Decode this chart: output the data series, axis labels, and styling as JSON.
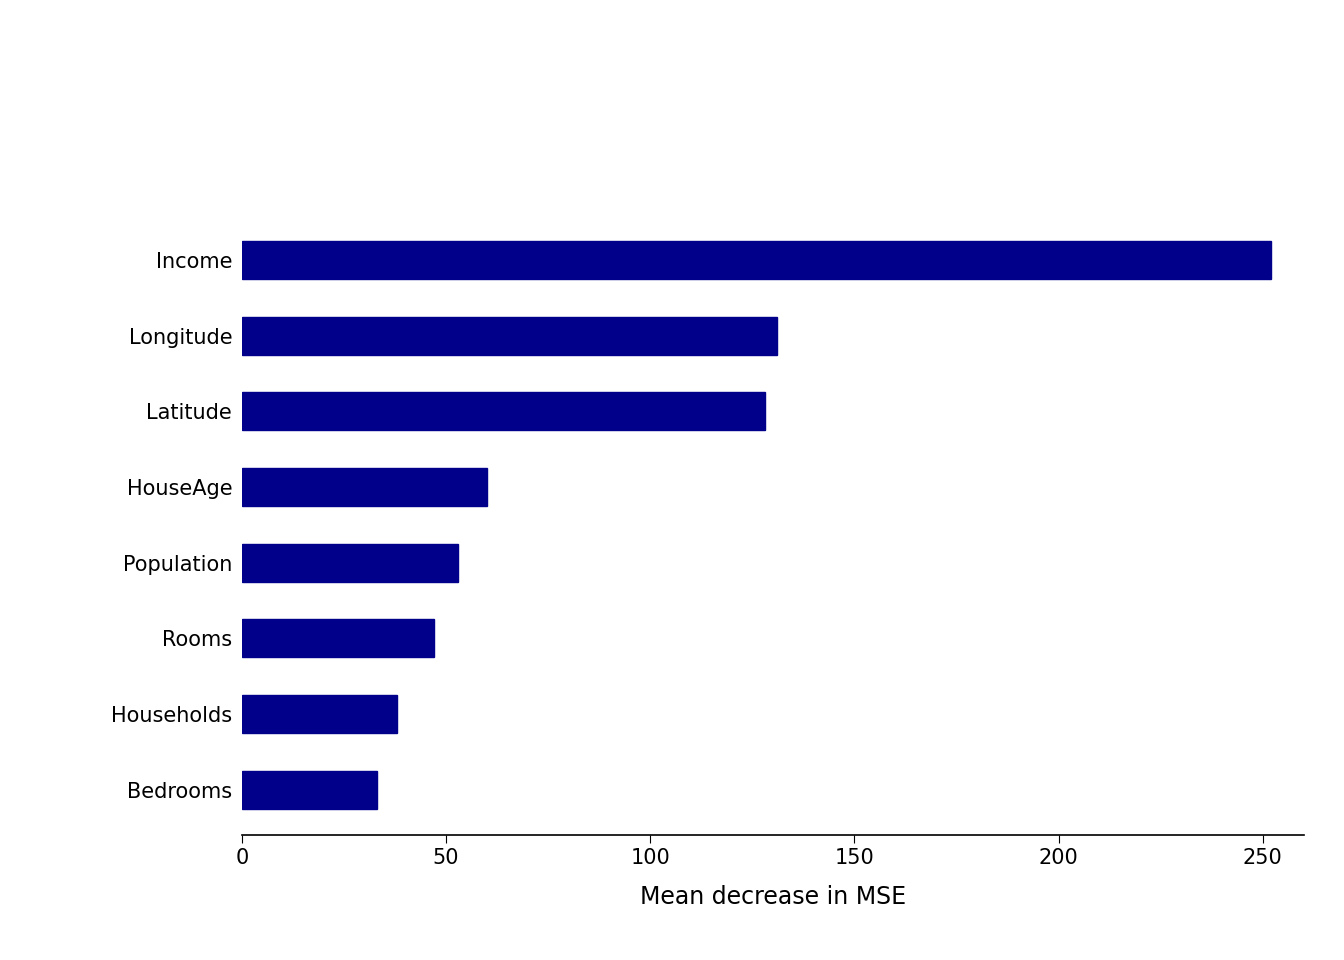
{
  "categories": [
    "Bedrooms",
    "Households",
    "Rooms",
    "Population",
    "HouseAge",
    "Latitude",
    "Longitude",
    "Income"
  ],
  "values": [
    33,
    38,
    47,
    53,
    60,
    128,
    131,
    252
  ],
  "bar_color": "#00008B",
  "xlabel": "Mean decrease in MSE",
  "xlim": [
    0,
    260
  ],
  "xticks": [
    0,
    50,
    100,
    150,
    200,
    250
  ],
  "background_color": "#ffffff",
  "bar_height": 0.5,
  "xlabel_fontsize": 17,
  "tick_fontsize": 15,
  "ytick_fontsize": 15
}
